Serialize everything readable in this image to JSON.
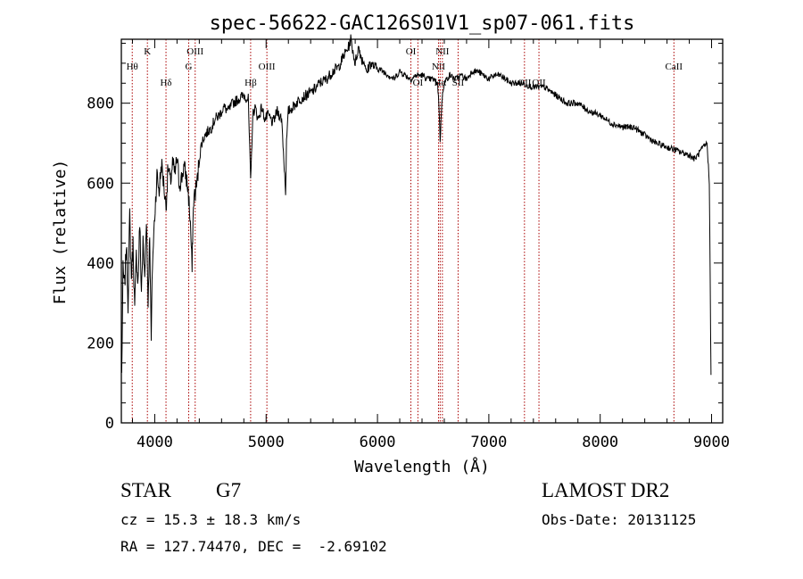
{
  "chart_data": {
    "type": "line",
    "title": "spec-56622-GAC126S01V1_sp07-061.fits",
    "xlabel": "Wavelength (Å)",
    "ylabel": "Flux (relative)",
    "xlim": [
      3700,
      9100
    ],
    "ylim": [
      0,
      960
    ],
    "xticks": [
      4000,
      5000,
      6000,
      7000,
      8000,
      9000
    ],
    "yticks": [
      0,
      200,
      400,
      600,
      800
    ],
    "x_minor_step": 200,
    "y_minor_step": 50,
    "grid": false,
    "series": [
      {
        "x": [
          3703,
          3715,
          3730,
          3745,
          3760,
          3775,
          3790,
          3805,
          3820,
          3835,
          3850,
          3865,
          3880,
          3895,
          3910,
          3925,
          3940,
          3955,
          3968,
          3980,
          4000,
          4020,
          4040,
          4060,
          4080,
          4101,
          4120,
          4140,
          4160,
          4180,
          4200,
          4220,
          4240,
          4260,
          4280,
          4300,
          4320,
          4335,
          4340,
          4350,
          4380,
          4400,
          4420,
          4450,
          4480,
          4510,
          4540,
          4580,
          4620,
          4660,
          4700,
          4750,
          4800,
          4840,
          4861,
          4880,
          4900,
          4930,
          4960,
          4990,
          5020,
          5060,
          5100,
          5140,
          5167,
          5175,
          5183,
          5200,
          5240,
          5300,
          5360,
          5420,
          5480,
          5540,
          5600,
          5650,
          5700,
          5740,
          5760,
          5780,
          5800,
          5830,
          5860,
          5890,
          5900,
          5930,
          5980,
          6050,
          6100,
          6150,
          6200,
          6250,
          6300,
          6350,
          6400,
          6450,
          6500,
          6540,
          6555,
          6563,
          6570,
          6585,
          6600,
          6620,
          6650,
          6700,
          6750,
          6800,
          6850,
          6900,
          6950,
          7000,
          7050,
          7100,
          7150,
          7200,
          7300,
          7400,
          7500,
          7600,
          7700,
          7800,
          7900,
          8000,
          8100,
          8200,
          8300,
          8400,
          8500,
          8600,
          8700,
          8800,
          8850,
          8900,
          8930,
          8960,
          8980,
          8995
        ],
        "y": [
          120,
          380,
          340,
          450,
          300,
          520,
          360,
          450,
          280,
          420,
          350,
          500,
          330,
          450,
          360,
          520,
          300,
          480,
          200,
          400,
          520,
          620,
          580,
          650,
          600,
          540,
          640,
          600,
          650,
          620,
          660,
          600,
          610,
          640,
          620,
          580,
          500,
          380,
          470,
          560,
          600,
          660,
          700,
          720,
          730,
          740,
          760,
          770,
          790,
          780,
          800,
          810,
          820,
          810,
          600,
          770,
          790,
          760,
          790,
          760,
          770,
          750,
          780,
          760,
          620,
          580,
          700,
          780,
          790,
          810,
          820,
          830,
          850,
          860,
          880,
          890,
          920,
          940,
          960,
          930,
          900,
          940,
          910,
          900,
          870,
          900,
          890,
          880,
          870,
          860,
          880,
          870,
          860,
          870,
          870,
          860,
          860,
          850,
          780,
          700,
          760,
          830,
          850,
          860,
          870,
          860,
          870,
          860,
          880,
          880,
          870,
          860,
          870,
          870,
          860,
          850,
          850,
          840,
          840,
          820,
          800,
          800,
          780,
          770,
          750,
          740,
          740,
          720,
          700,
          690,
          680,
          670,
          660,
          680,
          690,
          700,
          600,
          120
        ]
      }
    ],
    "lines": [
      {
        "name": "Hθ",
        "x": 3798,
        "row": 2
      },
      {
        "name": "K",
        "x": 3934,
        "row": 1
      },
      {
        "name": "Hδ",
        "x": 4101,
        "row": 3
      },
      {
        "name": "OIII",
        "x": 4363,
        "row": 1
      },
      {
        "name": "G",
        "x": 4305,
        "row": 2
      },
      {
        "name": "Hβ",
        "x": 4861,
        "row": 3
      },
      {
        "name": "OIII",
        "x": 5007,
        "row": 2
      },
      {
        "name": "OI",
        "x": 6300,
        "row": 1
      },
      {
        "name": "OI",
        "x": 6363,
        "row": 3
      },
      {
        "name": "NII",
        "x": 6548,
        "row": 2
      },
      {
        "name": "NII",
        "x": 6583,
        "row": 1
      },
      {
        "name": "Hα",
        "x": 6563,
        "row": 3
      },
      {
        "name": "SII",
        "x": 6724,
        "row": 3
      },
      {
        "name": "OII",
        "x": 7320,
        "row": 3
      },
      {
        "name": "OII",
        "x": 7450,
        "row": 3
      },
      {
        "name": "CaII",
        "x": 8662,
        "row": 2
      }
    ]
  },
  "info": {
    "class_label": "STAR",
    "subclass": "G7",
    "survey": "LAMOST DR2",
    "cz": "cz = 15.3 ± 18.3 km/s",
    "obs_date": "Obs-Date: 20131125",
    "coords": "RA = 127.74470, DEC =  -2.69102"
  },
  "colors": {
    "spectrum": "#000000",
    "line_markers": "#aa0000",
    "axes": "#000000"
  }
}
